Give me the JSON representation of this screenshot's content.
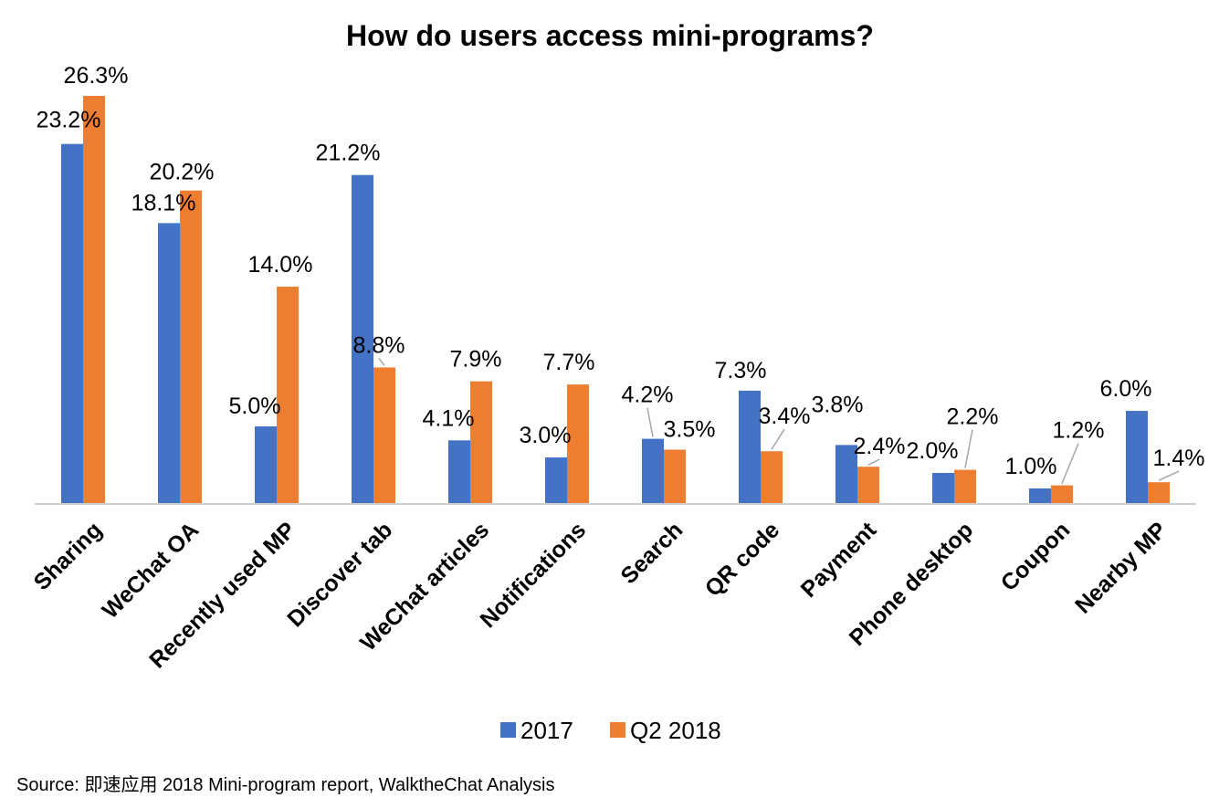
{
  "chart_data": {
    "type": "bar",
    "title": "How do users access mini-programs?",
    "categories": [
      "Sharing",
      "WeChat OA",
      "Recently used MP",
      "Discover tab",
      "WeChat articles",
      "Notifications",
      "Search",
      "QR code",
      "Payment",
      "Phone desktop",
      "Coupon",
      "Nearby MP"
    ],
    "series": [
      {
        "name": "2017",
        "color": "#4472C4",
        "values": [
          23.2,
          18.1,
          5.0,
          21.2,
          4.1,
          3.0,
          4.2,
          7.3,
          3.8,
          2.0,
          1.0,
          6.0
        ],
        "labels": [
          "23.2%",
          "18.1%",
          "5.0%",
          "21.2%",
          "4.1%",
          "3.0%",
          "4.2%",
          "7.3%",
          "3.8%",
          "2.0%",
          "1.0%",
          "6.0%"
        ]
      },
      {
        "name": "Q2 2018",
        "color": "#ED7D31",
        "values": [
          26.3,
          20.2,
          14.0,
          8.8,
          7.9,
          7.7,
          3.5,
          3.4,
          2.4,
          2.2,
          1.2,
          1.4
        ],
        "labels": [
          "26.3%",
          "20.2%",
          "14.0%",
          "8.8%",
          "7.9%",
          "7.7%",
          "3.5%",
          "3.4%",
          "2.4%",
          "2.2%",
          "1.2%",
          "1.4%"
        ]
      }
    ],
    "ylim": [
      0,
      30
    ],
    "grid": false,
    "legend": "bottom"
  },
  "source_note": "Source: 即速应用 2018 Mini-program report, WalktheChat  Analysis"
}
